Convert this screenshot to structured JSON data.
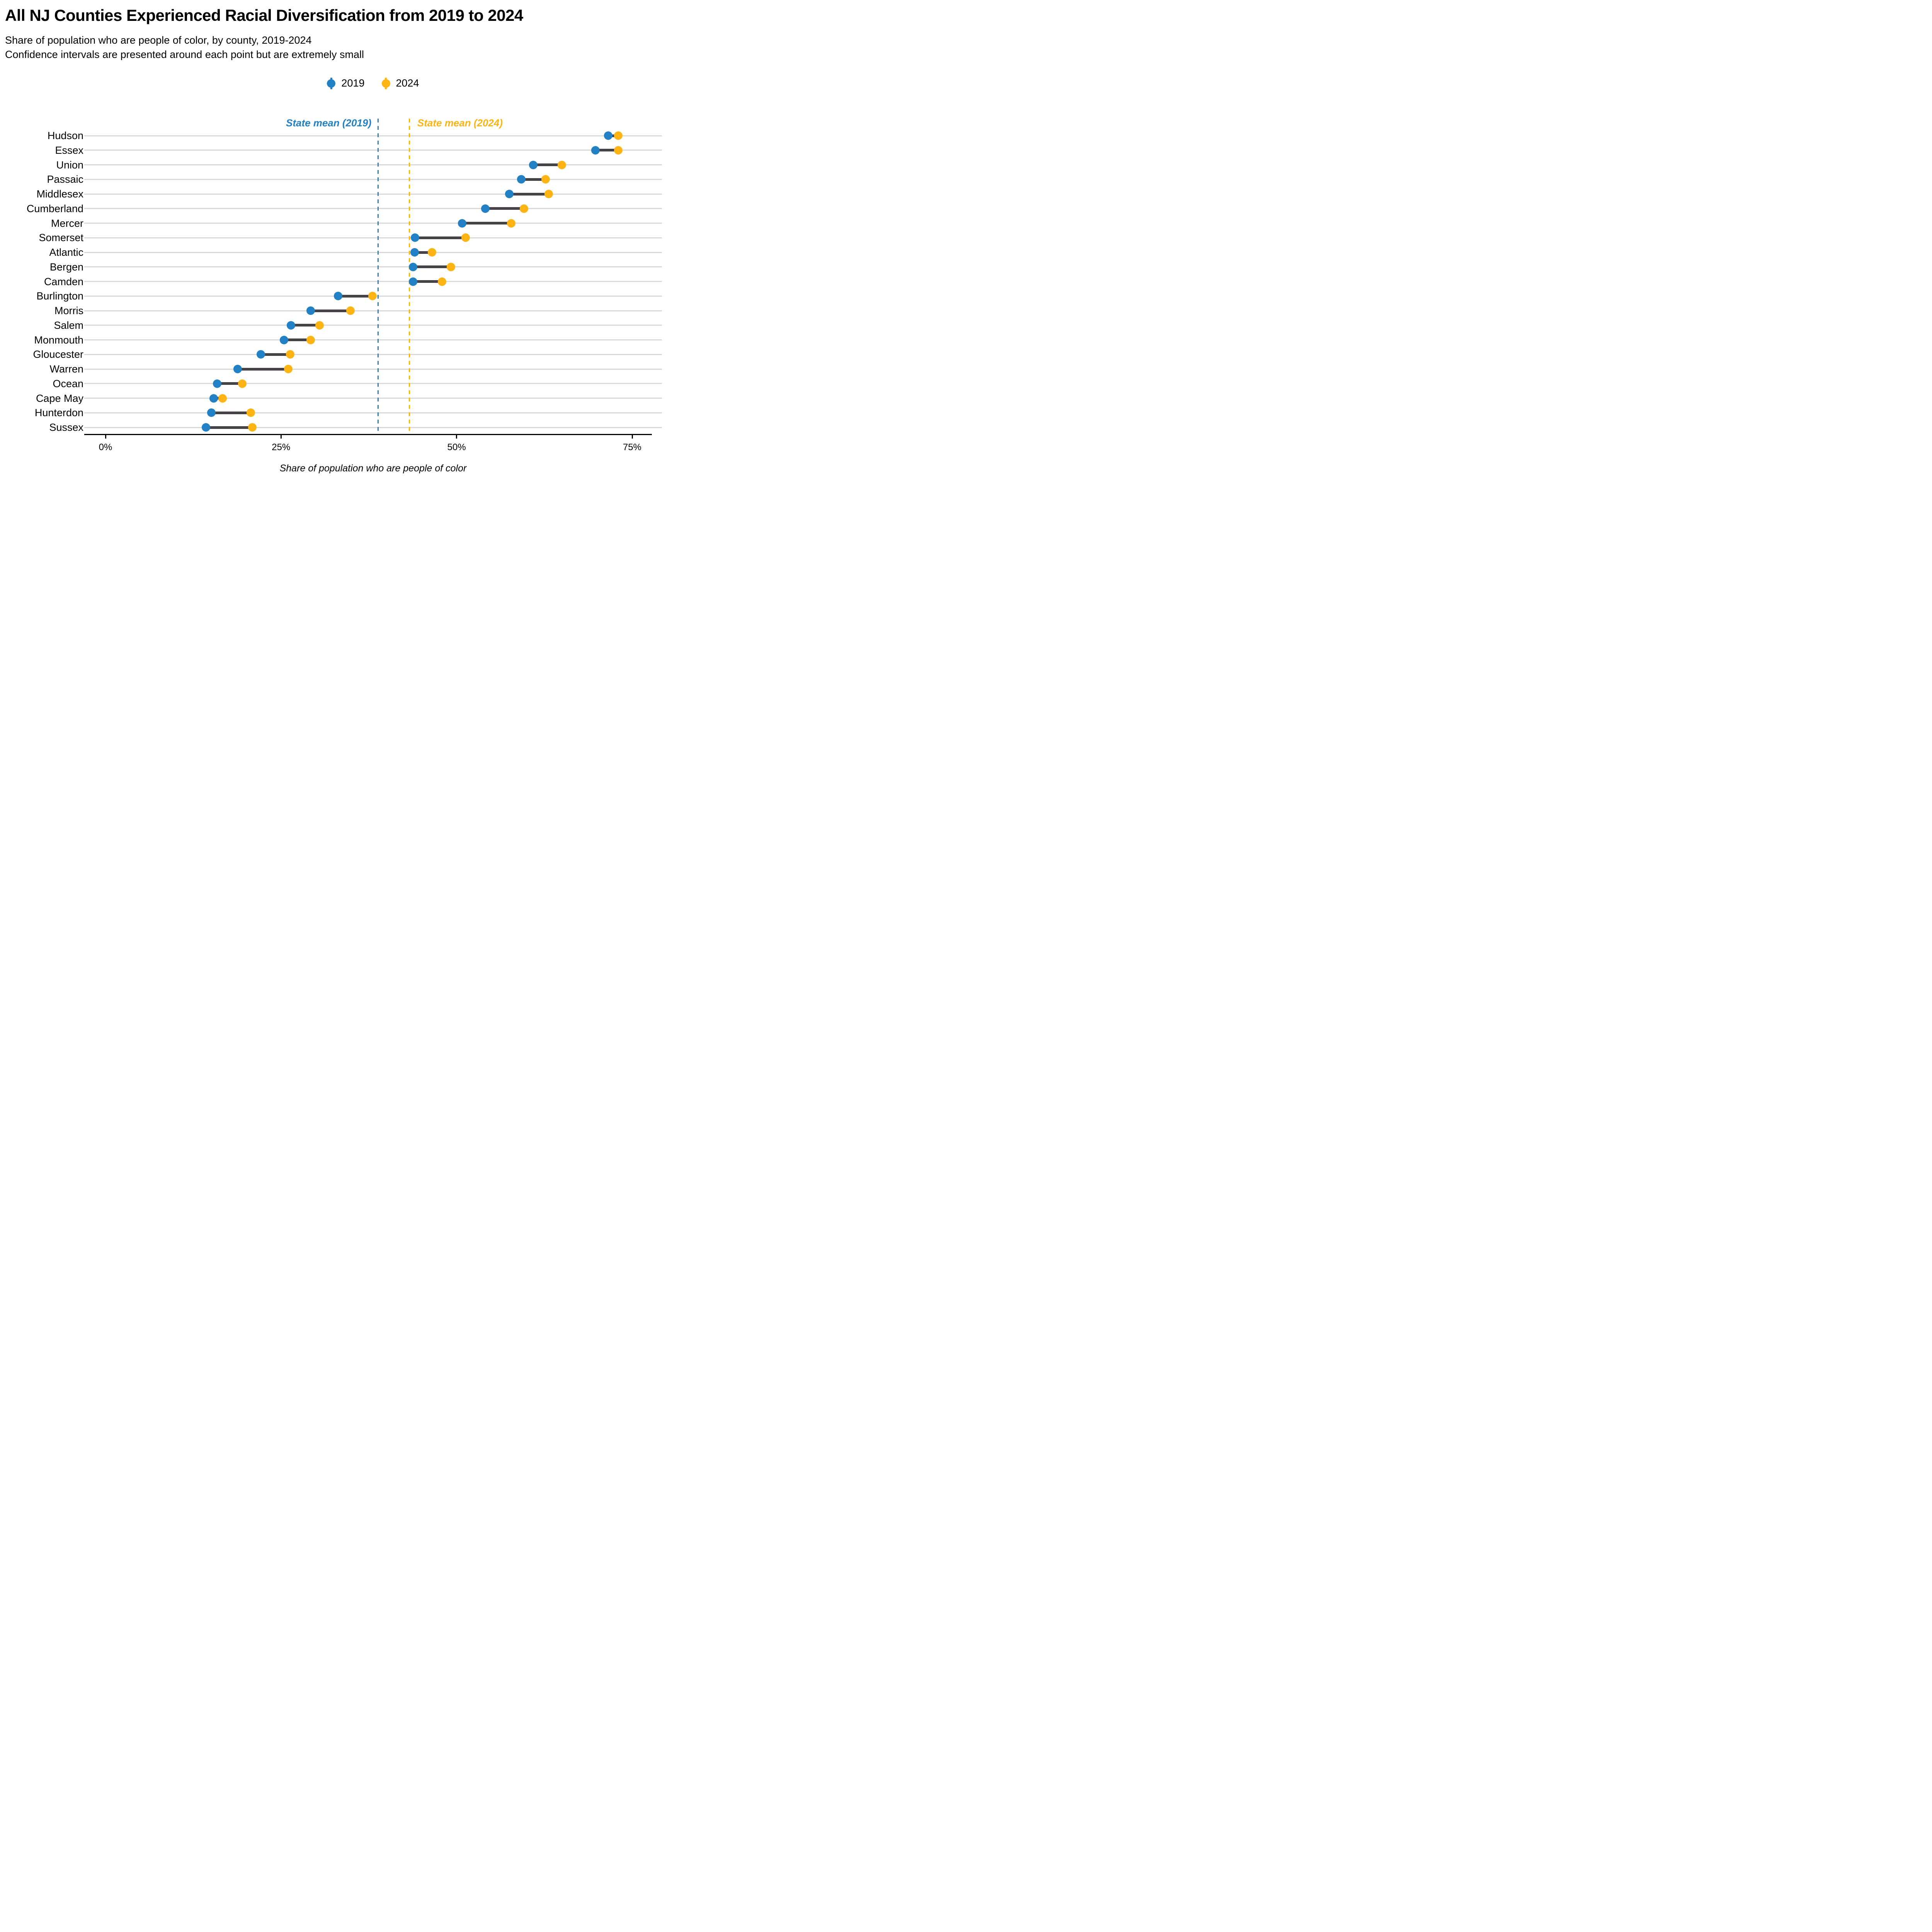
{
  "header": {
    "title": "All NJ Counties Experienced Racial Diversification from 2019 to 2024",
    "subtitle_line1": "Share of population who are people of color, by county, 2019-2024",
    "subtitle_line2": "Confidence intervals are presented around each point but are extremely small"
  },
  "legend": {
    "items": [
      {
        "label": "2019",
        "color": "#2280C4"
      },
      {
        "label": "2024",
        "color": "#FDB414"
      }
    ]
  },
  "colors": {
    "blue_2019": "#2280C4",
    "yellow_2024": "#FDB414",
    "connector": "#474247",
    "gridline": "#D9D9D9",
    "axis": "#000000"
  },
  "chart_data": {
    "type": "dumbbell",
    "title": "All NJ Counties Experienced Racial Diversification from 2019 to 2024",
    "xlabel": "Share of population who are people of color",
    "ylabel": "",
    "legend_position": "top-center",
    "grid": "horizontal-row-tracks",
    "xlim": [
      -3,
      79.2
    ],
    "x_ticks": [
      {
        "value": 0,
        "label": "0%"
      },
      {
        "value": 25,
        "label": "25%"
      },
      {
        "value": 50,
        "label": "50%"
      },
      {
        "value": 75,
        "label": "75%"
      }
    ],
    "categories": [
      "Hudson",
      "Essex",
      "Union",
      "Passaic",
      "Middlesex",
      "Cumberland",
      "Mercer",
      "Somerset",
      "Atlantic",
      "Bergen",
      "Camden",
      "Burlington",
      "Morris",
      "Salem",
      "Monmouth",
      "Gloucester",
      "Warren",
      "Ocean",
      "Cape May",
      "Hunterdon",
      "Sussex"
    ],
    "series": [
      {
        "name": "2019",
        "color": "#2280C4",
        "values": [
          71.6,
          69.8,
          60.9,
          59.2,
          57.5,
          54.1,
          50.8,
          44.1,
          44.0,
          43.8,
          43.8,
          33.1,
          29.2,
          26.4,
          25.4,
          22.1,
          18.8,
          15.9,
          15.4,
          15.1,
          14.3
        ]
      },
      {
        "name": "2024",
        "color": "#FDB414",
        "values": [
          73.0,
          73.0,
          65.0,
          62.7,
          63.1,
          59.6,
          57.8,
          51.3,
          46.5,
          49.2,
          47.9,
          38.0,
          34.9,
          30.5,
          29.2,
          26.3,
          26.0,
          19.5,
          16.7,
          20.7,
          20.9
        ]
      }
    ],
    "annotations": [
      {
        "label": "State mean (2019)",
        "value": 38.8,
        "color": "#2280C4"
      },
      {
        "label": "State mean (2024)",
        "value": 43.3,
        "color": "#FDB414"
      }
    ]
  }
}
